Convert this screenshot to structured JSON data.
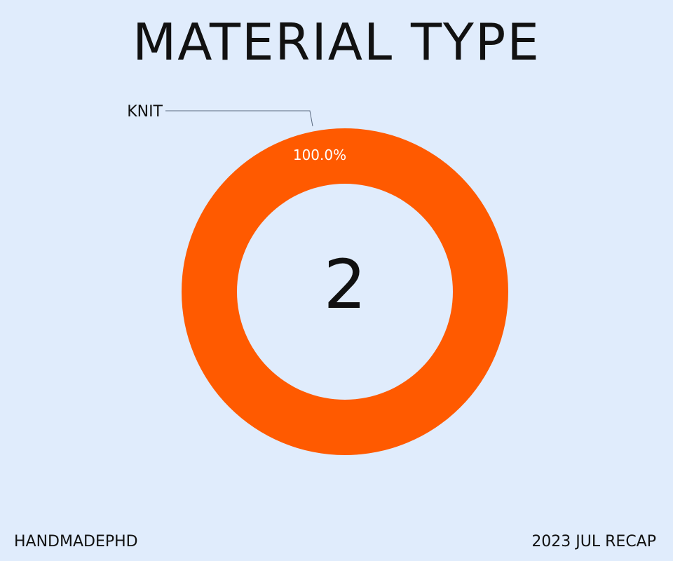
{
  "chart_data": {
    "type": "pie",
    "title": "MATERIAL TYPE",
    "center_value": "2",
    "slices": [
      {
        "label": "KNIT",
        "value": 2,
        "percent_label": "100.0%",
        "color": "#ff5a00"
      }
    ]
  },
  "footer": {
    "left": "HANDMADEPHD",
    "right": "2023 JUL RECAP"
  },
  "colors": {
    "background": "#e0ecfc",
    "text": "#111111",
    "leader_line": "#5a6a80",
    "slice_label": "#ffffff"
  }
}
